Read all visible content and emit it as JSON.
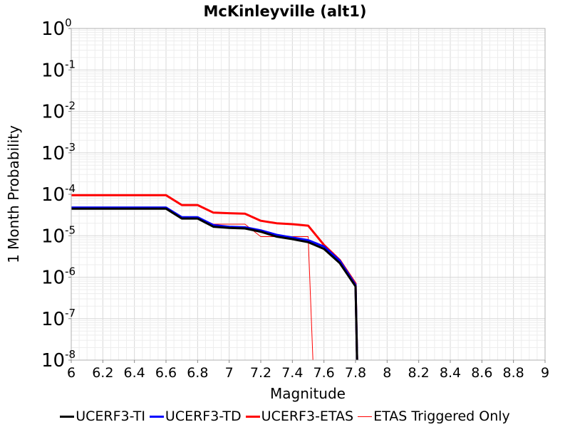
{
  "chart_data": {
    "type": "line",
    "title": "McKinleyville (alt1)",
    "xlabel": "Magnitude",
    "ylabel": "1 Month Probability",
    "y_scale": "log",
    "xlim": [
      6,
      9
    ],
    "ylim": [
      1e-08,
      1
    ],
    "grid": true,
    "legend_position": "bottom",
    "x_ticks": [
      "6",
      "6.2",
      "6.4",
      "6.6",
      "6.8",
      "7",
      "7.2",
      "7.4",
      "7.6",
      "7.8",
      "8",
      "8.2",
      "8.4",
      "8.6",
      "8.8",
      "9"
    ],
    "y_ticks": [
      {
        "base": "10",
        "exp": "0",
        "value": 1
      },
      {
        "base": "10",
        "exp": "-1",
        "value": 0.1
      },
      {
        "base": "10",
        "exp": "-2",
        "value": 0.01
      },
      {
        "base": "10",
        "exp": "-3",
        "value": 0.001
      },
      {
        "base": "10",
        "exp": "-4",
        "value": 0.0001
      },
      {
        "base": "10",
        "exp": "-5",
        "value": 1e-05
      },
      {
        "base": "10",
        "exp": "-6",
        "value": 1e-06
      },
      {
        "base": "10",
        "exp": "-7",
        "value": 1e-07
      },
      {
        "base": "10",
        "exp": "-8",
        "value": 1e-08
      }
    ],
    "series": [
      {
        "name": "UCERF3-TI",
        "color": "#000000",
        "width": 3,
        "x": [
          6.0,
          6.1,
          6.2,
          6.3,
          6.4,
          6.5,
          6.6,
          6.7,
          6.8,
          6.9,
          7.0,
          7.1,
          7.2,
          7.3,
          7.4,
          7.5,
          7.6,
          7.7,
          7.8,
          7.81
        ],
        "y": [
          4.5e-05,
          4.5e-05,
          4.5e-05,
          4.5e-05,
          4.5e-05,
          4.5e-05,
          4.5e-05,
          2.6e-05,
          2.6e-05,
          1.65e-05,
          1.55e-05,
          1.5e-05,
          1.25e-05,
          9.5e-06,
          8.3e-06,
          7e-06,
          4.8e-06,
          2.2e-06,
          6e-07,
          1e-08
        ]
      },
      {
        "name": "UCERF3-TD",
        "color": "#0000ff",
        "width": 3,
        "x": [
          6.0,
          6.1,
          6.2,
          6.3,
          6.4,
          6.5,
          6.6,
          6.7,
          6.8,
          6.9,
          7.0,
          7.1,
          7.2,
          7.3,
          7.4,
          7.5,
          7.6,
          7.7,
          7.8,
          7.81
        ],
        "y": [
          4.8e-05,
          4.8e-05,
          4.8e-05,
          4.8e-05,
          4.8e-05,
          4.8e-05,
          4.8e-05,
          2.8e-05,
          2.8e-05,
          1.8e-05,
          1.65e-05,
          1.6e-05,
          1.35e-05,
          1.05e-05,
          9e-06,
          7.8e-06,
          5.5e-06,
          2.5e-06,
          6.5e-07,
          1e-08
        ]
      },
      {
        "name": "UCERF3-ETAS",
        "color": "#ff0000",
        "width": 3,
        "x": [
          6.0,
          6.1,
          6.2,
          6.3,
          6.4,
          6.5,
          6.6,
          6.7,
          6.8,
          6.9,
          7.0,
          7.1,
          7.2,
          7.3,
          7.4,
          7.5,
          7.6,
          7.7,
          7.8,
          7.81
        ],
        "y": [
          9.5e-05,
          9.5e-05,
          9.5e-05,
          9.5e-05,
          9.5e-05,
          9.5e-05,
          9.5e-05,
          5.5e-05,
          5.5e-05,
          3.6e-05,
          3.5e-05,
          3.4e-05,
          2.3e-05,
          2e-05,
          1.9e-05,
          1.75e-05,
          6e-06,
          2.6e-06,
          7e-07,
          1e-08
        ]
      },
      {
        "name": "ETAS Triggered Only",
        "color": "#ff0000",
        "width": 1,
        "x": [
          6.0,
          6.1,
          6.2,
          6.3,
          6.4,
          6.5,
          6.6,
          6.7,
          6.8,
          6.9,
          7.0,
          7.1,
          7.2,
          7.3,
          7.4,
          7.5,
          7.53
        ],
        "y": [
          4.6e-05,
          4.6e-05,
          4.6e-05,
          4.6e-05,
          4.6e-05,
          4.6e-05,
          4.6e-05,
          2.8e-05,
          2.8e-05,
          1.9e-05,
          1.9e-05,
          1.9e-05,
          9.5e-06,
          9.5e-06,
          9.5e-06,
          9.5e-06,
          1e-08
        ]
      }
    ]
  }
}
